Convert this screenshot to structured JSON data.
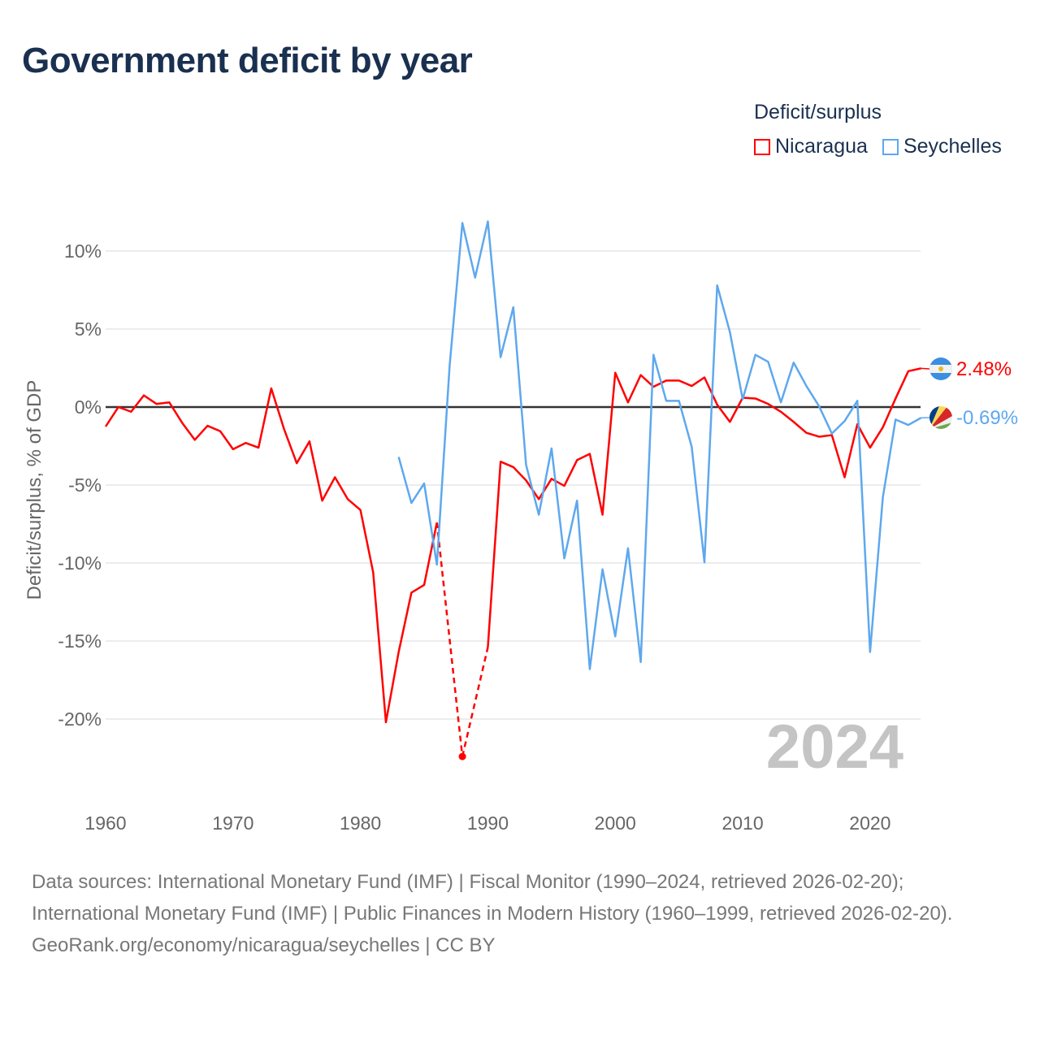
{
  "title": "Government deficit by year",
  "legend": {
    "title": "Deficit/surplus",
    "items": [
      {
        "name": "Nicaragua",
        "color": "#ff0000"
      },
      {
        "name": "Seychelles",
        "color": "#5ea8ee"
      }
    ]
  },
  "footer": {
    "sources": "Data sources: International Monetary Fund (IMF) | Fiscal Monitor (1990–2024, retrieved 2026-02-20); International Monetary Fund (IMF) | Public Finances in Modern History (1960–1999, retrieved 2026-02-20).",
    "credit": "GeoRank.org/economy/nicaragua/seychelles | CC BY"
  },
  "chart_data": {
    "type": "line",
    "title": "Government deficit by year",
    "ylabel": "Deficit/surplus, % of GDP",
    "xlabel": "",
    "xlim": [
      1960,
      2024
    ],
    "ylim": [
      -22.5,
      12
    ],
    "x_ticks": [
      1960,
      1970,
      1980,
      1990,
      2000,
      2010,
      2020
    ],
    "x_tick_labels": [
      "1960",
      "1970",
      "1980",
      "1990",
      "2000",
      "2010",
      "2020"
    ],
    "y_ticks": [
      10,
      5,
      0,
      -5,
      -10,
      -15,
      -20
    ],
    "y_tick_labels": [
      "10%",
      "5%",
      "0%",
      "-5%",
      "-10%",
      "-15%",
      "-20%"
    ],
    "year_watermark": "2024",
    "grid": true,
    "legend_position": "top-right",
    "series": [
      {
        "name": "Nicaragua",
        "color": "#ff0000",
        "end_label": "2.48%",
        "start_year": 1960,
        "values": [
          -1.25,
          0.0,
          -0.3,
          0.75,
          0.2,
          0.3,
          -1.0,
          -2.1,
          -1.2,
          -1.55,
          -2.7,
          -2.3,
          -2.6,
          1.2,
          -1.4,
          -3.6,
          -2.2,
          -6.0,
          -4.5,
          -5.9,
          -6.6,
          -10.6,
          -20.2,
          -15.7,
          -11.9,
          -11.4,
          -7.4,
          null,
          -22.4,
          null,
          -15.4,
          -3.5,
          -3.85,
          -4.7,
          -5.9,
          -4.6,
          -5.05,
          -3.4,
          -3.0,
          -6.9,
          2.2,
          0.3,
          2.05,
          1.3,
          1.7,
          1.7,
          1.35,
          1.9,
          0.15,
          -0.95,
          0.6,
          0.55,
          0.2,
          -0.3,
          -0.95,
          -1.65,
          -1.9,
          -1.8,
          -4.5,
          -1.1,
          -2.6,
          -1.3,
          0.55,
          2.3,
          2.48
        ]
      },
      {
        "name": "Seychelles",
        "color": "#5ea8ee",
        "end_label": "-0.69%",
        "start_year": 1983,
        "values": [
          -3.2,
          -6.15,
          -4.9,
          -10.1,
          2.65,
          11.8,
          8.3,
          11.9,
          3.2,
          6.4,
          -3.7,
          -6.9,
          -2.65,
          -9.7,
          -6.0,
          -16.8,
          -10.4,
          -14.7,
          -9.05,
          -16.35,
          3.35,
          0.4,
          0.4,
          -2.55,
          -9.95,
          7.8,
          4.8,
          0.5,
          3.35,
          2.9,
          0.3,
          2.85,
          1.35,
          0.05,
          -1.7,
          -0.9,
          0.4,
          -15.7,
          -5.8,
          -0.8,
          -1.15,
          -0.69
        ]
      }
    ]
  }
}
